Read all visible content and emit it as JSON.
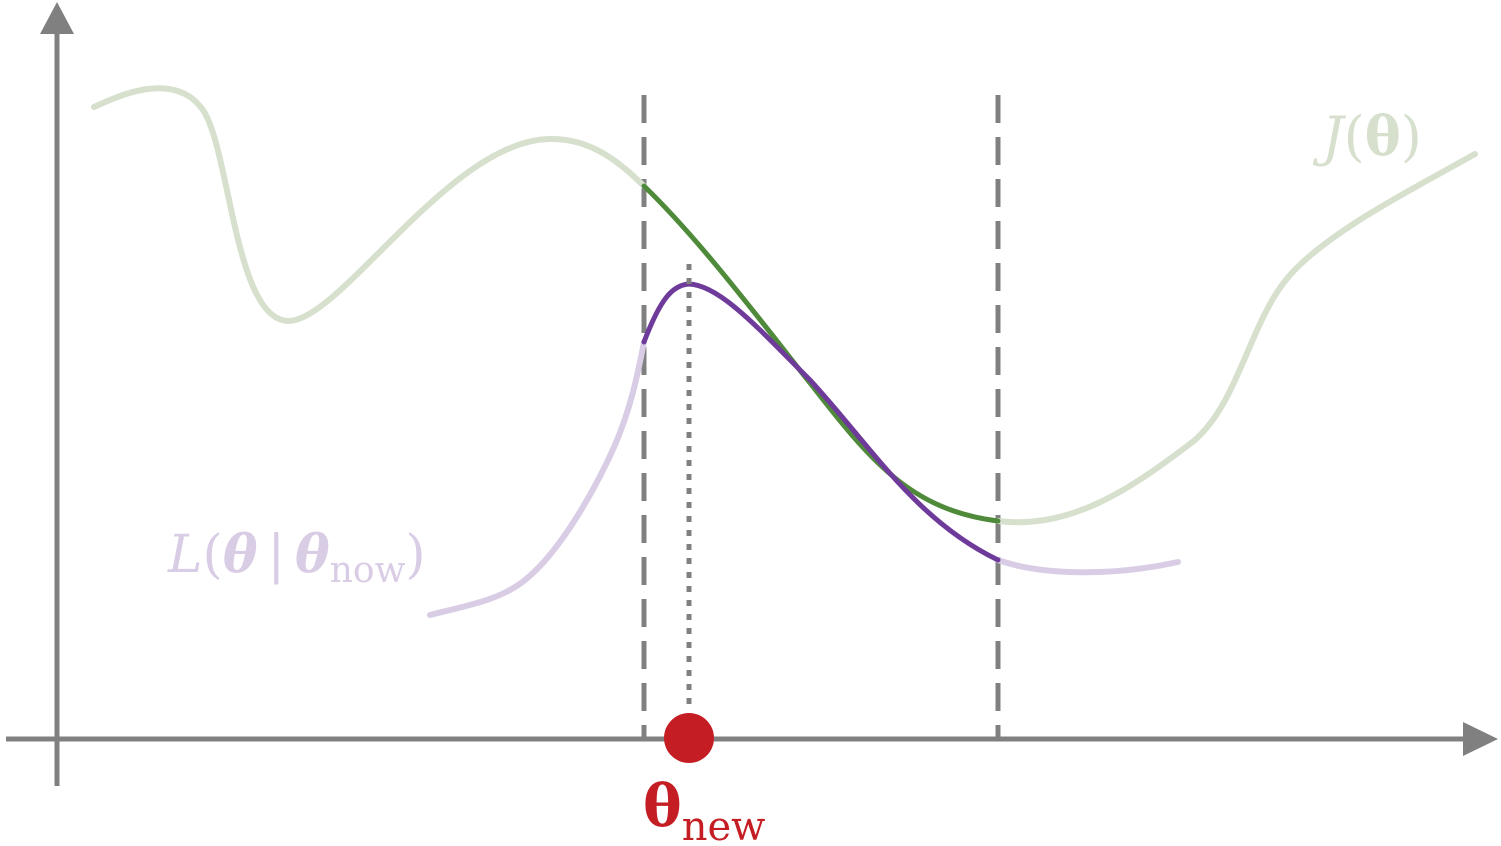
{
  "labels": {
    "objective": {
      "symbol": "J",
      "open": "(",
      "arg": "θ",
      "close": ")"
    },
    "surrogate": {
      "symbol": "L",
      "open": "(",
      "arg": "θ",
      "bar": "|",
      "given": "θ",
      "given_sub": "now",
      "close": ")"
    },
    "new_point": {
      "symbol": "θ",
      "sub": "new"
    }
  },
  "colors": {
    "axis": "#808080",
    "objective_faded": "#d6e0cd",
    "objective_region": "#4f8a3a",
    "surrogate_faded": "#d9cde6",
    "surrogate_region": "#6f3b9b",
    "new_point": "#c41e24",
    "guide": "#808080"
  }
}
